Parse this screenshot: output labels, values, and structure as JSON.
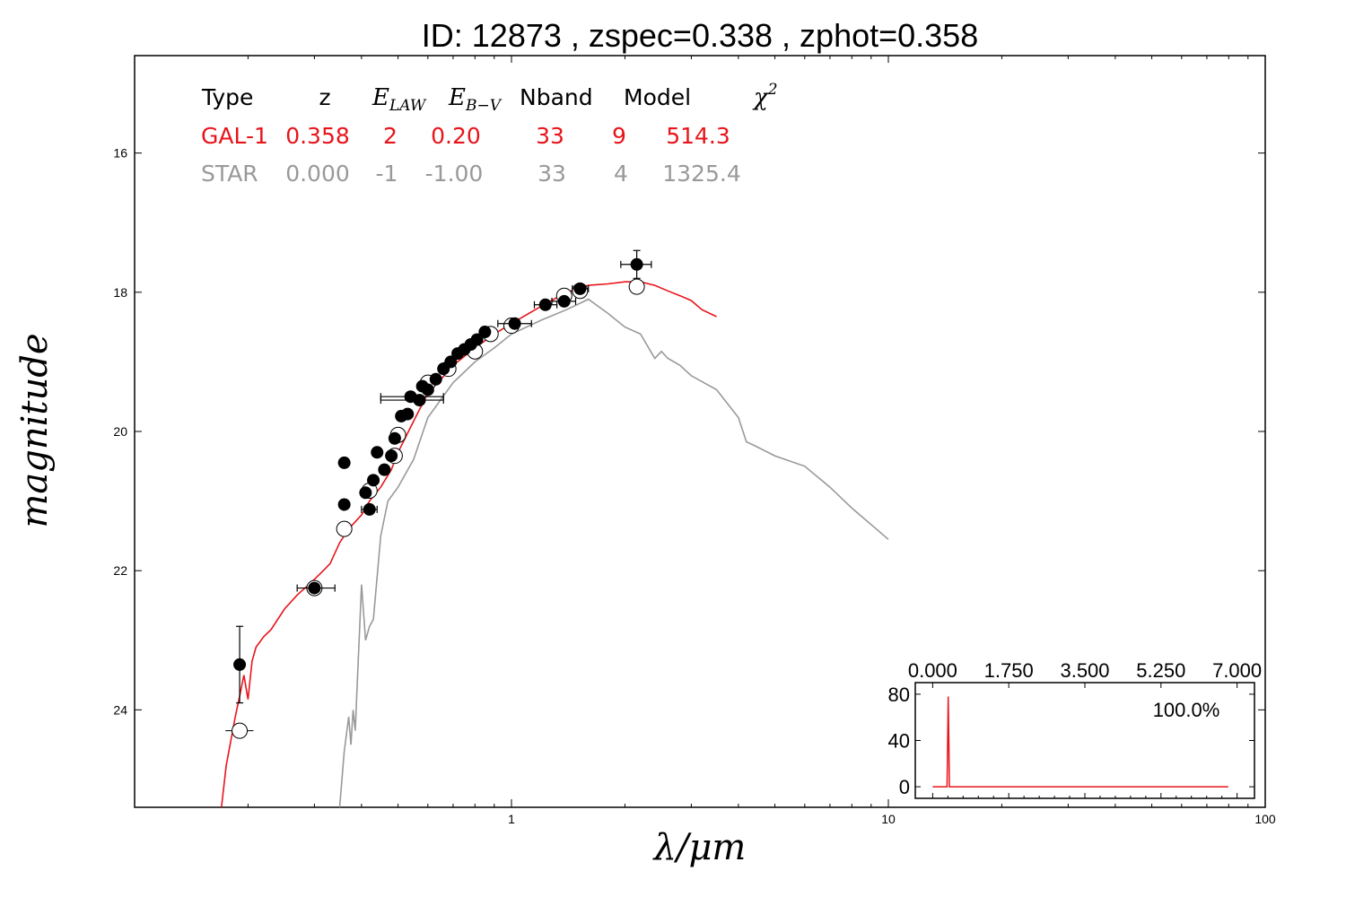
{
  "title": "ID:  12873 , zspec=0.338 , zphot=0.358",
  "colors": {
    "gal": "#e8141b",
    "star": "#999999",
    "point": "#000000"
  },
  "chart_data": {
    "type": "scatter",
    "xlabel": "λ/μm",
    "ylabel": "magnitude",
    "xscale": "log",
    "xlim": [
      0.1,
      100
    ],
    "ylim": [
      25.4,
      14.6
    ],
    "x_ticks": [
      1,
      10,
      100
    ],
    "x_tick_labels": [
      "1",
      "10",
      "100"
    ],
    "y_ticks": [
      16,
      18,
      20,
      22,
      24
    ],
    "y_tick_labels": [
      "16",
      "18",
      "20",
      "22",
      "24"
    ],
    "table": {
      "headers": [
        "Type",
        "z",
        "E_LAW",
        "E_B-V",
        "Nband",
        "Model",
        "χ2"
      ],
      "rows": [
        {
          "type": "GAL-1",
          "z": "0.358",
          "elaw": "2",
          "ebv": "0.20",
          "nband": "33",
          "model": "9",
          "chi2": "514.3"
        },
        {
          "type": "STAR",
          "z": "0.000",
          "elaw": "-1",
          "ebv": "-1.00",
          "nband": "33",
          "model": "4",
          "chi2": "1325.4"
        }
      ]
    },
    "observed": [
      {
        "x": 0.19,
        "y": 23.35,
        "xerr": [
          0.19,
          0.19
        ],
        "yerr": 0.55
      },
      {
        "x": 0.36,
        "y": 20.45,
        "xerr": [
          0.35,
          0.37
        ],
        "yerr": 0.05
      },
      {
        "x": 0.36,
        "y": 21.05,
        "xerr": [
          0.35,
          0.37
        ],
        "yerr": 0.05
      },
      {
        "x": 0.3,
        "y": 22.25,
        "xerr": [
          0.27,
          0.34
        ],
        "yerr": 0.05
      },
      {
        "x": 0.42,
        "y": 21.12,
        "xerr": [
          0.4,
          0.44
        ],
        "yerr": 0.05
      },
      {
        "x": 0.41,
        "y": 20.88,
        "xerr": [
          0.4,
          0.42
        ],
        "yerr": 0.05
      },
      {
        "x": 0.43,
        "y": 20.7,
        "xerr": [
          0.42,
          0.44
        ],
        "yerr": 0.05
      },
      {
        "x": 0.44,
        "y": 20.3,
        "xerr": [
          0.43,
          0.45
        ],
        "yerr": 0.05
      },
      {
        "x": 0.46,
        "y": 20.55,
        "xerr": [
          0.45,
          0.47
        ],
        "yerr": 0.05
      },
      {
        "x": 0.48,
        "y": 20.35,
        "xerr": [
          0.47,
          0.49
        ],
        "yerr": 0.05
      },
      {
        "x": 0.49,
        "y": 20.1,
        "xerr": [
          0.48,
          0.5
        ],
        "yerr": 0.05
      },
      {
        "x": 0.51,
        "y": 19.78,
        "xerr": [
          0.5,
          0.52
        ],
        "yerr": 0.05
      },
      {
        "x": 0.53,
        "y": 19.75,
        "xerr": [
          0.52,
          0.54
        ],
        "yerr": 0.05
      },
      {
        "x": 0.54,
        "y": 19.5,
        "xerr": [
          0.45,
          0.66
        ],
        "yerr": 0.05
      },
      {
        "x": 0.57,
        "y": 19.55,
        "xerr": [
          0.45,
          0.66
        ],
        "yerr": 0.05
      },
      {
        "x": 0.58,
        "y": 19.35,
        "xerr": [
          0.57,
          0.59
        ],
        "yerr": 0.05
      },
      {
        "x": 0.6,
        "y": 19.4,
        "xerr": [
          0.59,
          0.61
        ],
        "yerr": 0.05
      },
      {
        "x": 0.63,
        "y": 19.25,
        "xerr": [
          0.62,
          0.64
        ],
        "yerr": 0.05
      },
      {
        "x": 0.66,
        "y": 19.1,
        "xerr": [
          0.65,
          0.67
        ],
        "yerr": 0.05
      },
      {
        "x": 0.69,
        "y": 19.0,
        "xerr": [
          0.68,
          0.7
        ],
        "yerr": 0.05
      },
      {
        "x": 0.72,
        "y": 18.88,
        "xerr": [
          0.7,
          0.74
        ],
        "yerr": 0.05
      },
      {
        "x": 0.75,
        "y": 18.82,
        "xerr": [
          0.73,
          0.77
        ],
        "yerr": 0.05
      },
      {
        "x": 0.78,
        "y": 18.75,
        "xerr": [
          0.76,
          0.8
        ],
        "yerr": 0.05
      },
      {
        "x": 0.81,
        "y": 18.68,
        "xerr": [
          0.79,
          0.83
        ],
        "yerr": 0.05
      },
      {
        "x": 0.85,
        "y": 18.57,
        "xerr": [
          0.83,
          0.87
        ],
        "yerr": 0.05
      },
      {
        "x": 1.02,
        "y": 18.45,
        "xerr": [
          0.92,
          1.13
        ],
        "yerr": 0.05
      },
      {
        "x": 1.23,
        "y": 18.18,
        "xerr": [
          1.15,
          1.32
        ],
        "yerr": 0.05
      },
      {
        "x": 1.38,
        "y": 18.13,
        "xerr": [
          1.28,
          1.48
        ],
        "yerr": 0.05
      },
      {
        "x": 1.52,
        "y": 17.95,
        "xerr": [
          1.45,
          1.6
        ],
        "yerr": 0.05
      },
      {
        "x": 2.15,
        "y": 17.6,
        "xerr": [
          1.95,
          2.35
        ],
        "yerr": 0.2
      }
    ],
    "model_points": [
      {
        "x": 0.19,
        "y": 24.3,
        "xerr": [
          0.18,
          0.2
        ]
      },
      {
        "x": 0.3,
        "y": 22.25
      },
      {
        "x": 0.36,
        "y": 21.4
      },
      {
        "x": 0.42,
        "y": 20.85
      },
      {
        "x": 0.49,
        "y": 20.35
      },
      {
        "x": 0.5,
        "y": 20.05
      },
      {
        "x": 0.6,
        "y": 19.3
      },
      {
        "x": 0.68,
        "y": 19.1
      },
      {
        "x": 0.8,
        "y": 18.85
      },
      {
        "x": 0.88,
        "y": 18.6
      },
      {
        "x": 1.0,
        "y": 18.48
      },
      {
        "x": 1.38,
        "y": 18.05
      },
      {
        "x": 1.52,
        "y": 17.98
      },
      {
        "x": 2.15,
        "y": 17.92
      }
    ],
    "series": [
      {
        "name": "GAL-1",
        "color": "#e8141b",
        "x": [
          0.17,
          0.175,
          0.185,
          0.19,
          0.195,
          0.2,
          0.205,
          0.21,
          0.22,
          0.23,
          0.25,
          0.27,
          0.29,
          0.31,
          0.33,
          0.35,
          0.37,
          0.4,
          0.42,
          0.45,
          0.48,
          0.5,
          0.55,
          0.6,
          0.65,
          0.7,
          0.8,
          0.9,
          1.0,
          1.2,
          1.4,
          1.6,
          1.8,
          2.0,
          2.2,
          2.4,
          2.6,
          2.8,
          3.0,
          3.2,
          3.5
        ],
        "y": [
          25.4,
          24.8,
          24.1,
          23.8,
          23.5,
          23.85,
          23.3,
          23.1,
          22.95,
          22.85,
          22.55,
          22.35,
          22.2,
          22.05,
          21.9,
          21.6,
          21.4,
          21.2,
          21.0,
          20.8,
          20.55,
          20.3,
          19.85,
          19.45,
          19.25,
          19.05,
          18.8,
          18.6,
          18.45,
          18.2,
          18.0,
          17.9,
          17.88,
          17.85,
          17.85,
          17.9,
          17.98,
          18.05,
          18.12,
          18.25,
          18.35
        ]
      },
      {
        "name": "STAR",
        "color": "#999999",
        "x": [
          0.35,
          0.36,
          0.37,
          0.375,
          0.38,
          0.385,
          0.39,
          0.4,
          0.41,
          0.42,
          0.43,
          0.45,
          0.47,
          0.5,
          0.55,
          0.6,
          0.7,
          0.8,
          0.9,
          1.0,
          1.2,
          1.4,
          1.6,
          1.8,
          2.0,
          2.2,
          2.4,
          2.5,
          2.6,
          2.8,
          3.0,
          3.5,
          4.0,
          4.2,
          4.4,
          5.0,
          6.0,
          7.0,
          8.0,
          10.0
        ],
        "y": [
          25.4,
          24.6,
          24.1,
          24.5,
          24.0,
          24.3,
          23.6,
          22.2,
          23.0,
          22.8,
          22.7,
          21.5,
          21.0,
          20.8,
          20.4,
          19.8,
          19.3,
          19.0,
          18.8,
          18.6,
          18.4,
          18.25,
          18.1,
          18.3,
          18.5,
          18.6,
          18.95,
          18.85,
          18.95,
          19.05,
          19.2,
          19.4,
          19.8,
          20.15,
          20.2,
          20.35,
          20.5,
          20.8,
          21.1,
          21.55
        ]
      }
    ],
    "inset": {
      "xlim": [
        -0.4,
        7.4
      ],
      "ylim": [
        -10,
        90
      ],
      "x_ticks": [
        0.0,
        1.75,
        3.5,
        5.25,
        7.0
      ],
      "x_tick_labels": [
        "0.000",
        "1.750",
        "3.500",
        "5.250",
        "7.000"
      ],
      "y_ticks": [
        0,
        40,
        80
      ],
      "y_tick_labels": [
        "0",
        "40",
        "80"
      ],
      "label": "100.0%",
      "pdf": {
        "x": [
          0.0,
          0.33,
          0.345,
          0.358,
          0.372,
          0.385,
          6.8
        ],
        "y": [
          0,
          0,
          40,
          78,
          40,
          0,
          0
        ]
      }
    }
  }
}
